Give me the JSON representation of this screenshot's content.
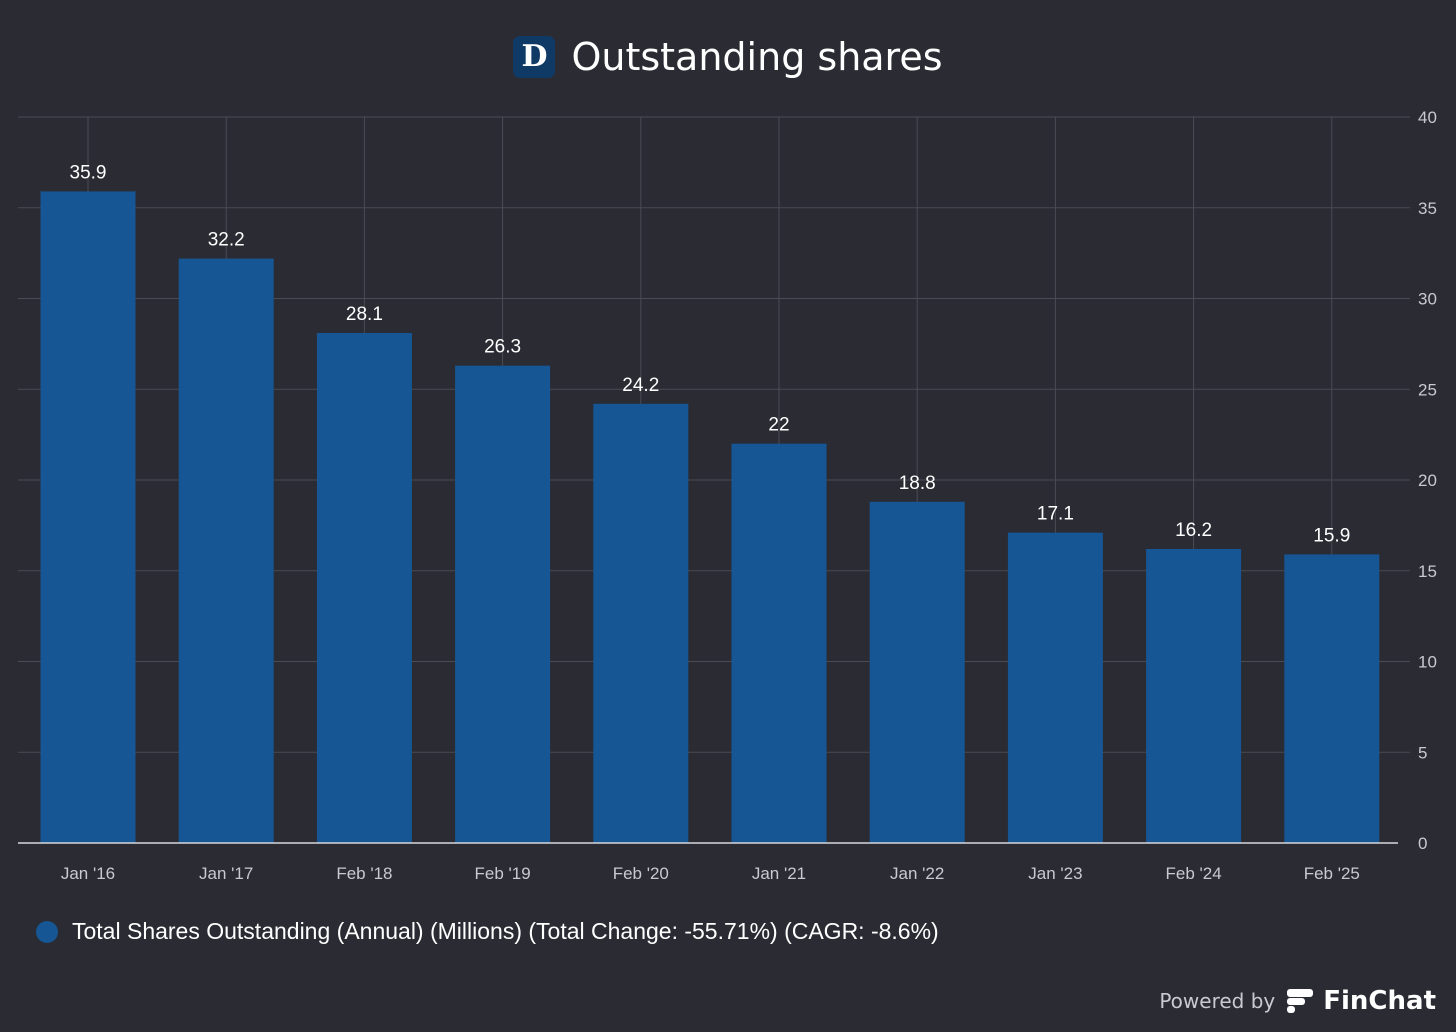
{
  "header": {
    "logo_letter": "D",
    "title": "Outstanding shares"
  },
  "colors": {
    "background": "#2a2b33",
    "bar": "#175694",
    "grid": "#4a4b55",
    "axis": "#c9c9cf",
    "text": "#ffffff",
    "logo_bg": "#0f3a66"
  },
  "chart_data": {
    "type": "bar",
    "title": "Outstanding shares",
    "categories": [
      "Jan '16",
      "Jan '17",
      "Feb '18",
      "Feb '19",
      "Feb '20",
      "Jan '21",
      "Jan '22",
      "Jan '23",
      "Feb '24",
      "Feb '25"
    ],
    "series": [
      {
        "name": "Total Shares Outstanding (Annual) (Millions) (Total Change: -55.71%) (CAGR: -8.6%)",
        "values": [
          35.9,
          32.2,
          28.1,
          26.3,
          24.2,
          22,
          18.8,
          17.1,
          16.2,
          15.9
        ]
      }
    ],
    "y_ticks": [
      0,
      5,
      10,
      15,
      20,
      25,
      30,
      35,
      40
    ],
    "ylim": [
      0,
      40
    ],
    "y_axis_side": "right",
    "grid": true,
    "legend_position": "bottom-left"
  },
  "legend": {
    "label": "Total Shares Outstanding (Annual) (Millions) (Total Change: -55.71%) (CAGR: -8.6%)"
  },
  "footer": {
    "powered_by": "Powered by",
    "brand": "FinChat"
  }
}
